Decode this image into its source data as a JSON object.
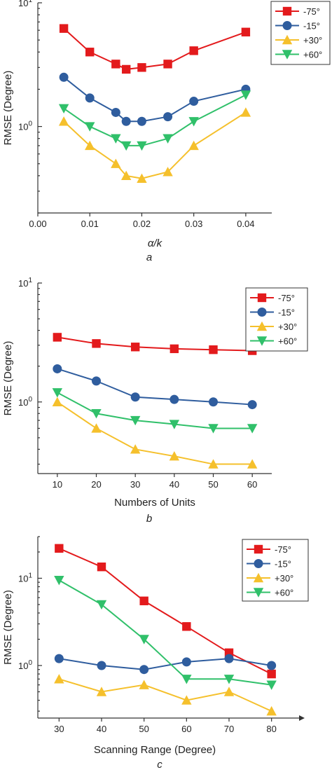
{
  "figure": {
    "colors": {
      "-75°": "#e31a1c",
      "-15°": "#2f5d9e",
      "+30°": "#f5c02c",
      "+60°": "#30c06a"
    },
    "markers": {
      "-75°": "square",
      "-15°": "circle",
      "+30°": "triangle-up",
      "+60°": "triangle-down"
    }
  },
  "chart_data": [
    {
      "type": "line",
      "panel_label": "a",
      "xlabel": "α/k",
      "xlabel_italic": true,
      "ylabel": "RMSE (Degree)",
      "yscale": "log",
      "xlim": [
        0.0,
        0.045
      ],
      "ylim": [
        0.2,
        10
      ],
      "xticks": [
        0.0,
        0.01,
        0.02,
        0.03,
        0.04
      ],
      "xtick_labels": [
        "0.00",
        "0.01",
        "0.02",
        "0.03",
        "0.04"
      ],
      "yticks": [
        1,
        10
      ],
      "ytick_labels": [
        "10⁰",
        "10¹"
      ],
      "legend_position": "top-right",
      "series": [
        {
          "name": "-75°",
          "x": [
            0.005,
            0.01,
            0.015,
            0.017,
            0.02,
            0.025,
            0.03,
            0.04
          ],
          "y": [
            6.2,
            4.0,
            3.2,
            2.9,
            3.0,
            3.2,
            4.1,
            5.8
          ]
        },
        {
          "name": "-15°",
          "x": [
            0.005,
            0.01,
            0.015,
            0.017,
            0.02,
            0.025,
            0.03,
            0.04
          ],
          "y": [
            2.5,
            1.7,
            1.3,
            1.1,
            1.1,
            1.2,
            1.6,
            2.0
          ]
        },
        {
          "name": "+30°",
          "x": [
            0.005,
            0.01,
            0.015,
            0.017,
            0.02,
            0.025,
            0.03,
            0.04
          ],
          "y": [
            1.1,
            0.7,
            0.5,
            0.4,
            0.38,
            0.43,
            0.7,
            1.3
          ]
        },
        {
          "name": "+60°",
          "x": [
            0.005,
            0.01,
            0.015,
            0.017,
            0.02,
            0.025,
            0.03,
            0.04
          ],
          "y": [
            1.4,
            1.0,
            0.8,
            0.7,
            0.7,
            0.8,
            1.1,
            1.8
          ]
        }
      ]
    },
    {
      "type": "line",
      "panel_label": "b",
      "xlabel": "Numbers of Units",
      "xlabel_italic": false,
      "ylabel": "RMSE (Degree)",
      "yscale": "log",
      "xlim": [
        5,
        65
      ],
      "ylim": [
        0.25,
        10
      ],
      "xticks": [
        10,
        20,
        30,
        40,
        50,
        60
      ],
      "xtick_labels": [
        "10",
        "20",
        "30",
        "40",
        "50",
        "60"
      ],
      "yticks": [
        1,
        10
      ],
      "ytick_labels": [
        "10⁰",
        "10¹"
      ],
      "legend_position": "top-right",
      "series": [
        {
          "name": "-75°",
          "x": [
            10,
            20,
            30,
            40,
            50,
            60
          ],
          "y": [
            3.5,
            3.1,
            2.9,
            2.8,
            2.75,
            2.7
          ]
        },
        {
          "name": "-15°",
          "x": [
            10,
            20,
            30,
            40,
            50,
            60
          ],
          "y": [
            1.9,
            1.5,
            1.1,
            1.05,
            1.0,
            0.95
          ]
        },
        {
          "name": "+30°",
          "x": [
            10,
            20,
            30,
            40,
            50,
            60
          ],
          "y": [
            1.0,
            0.6,
            0.4,
            0.35,
            0.3,
            0.3
          ]
        },
        {
          "name": "+60°",
          "x": [
            10,
            20,
            30,
            40,
            50,
            60
          ],
          "y": [
            1.2,
            0.8,
            0.7,
            0.65,
            0.6,
            0.6
          ]
        }
      ]
    },
    {
      "type": "line",
      "panel_label": "c",
      "xlabel": "Scanning Range (Degree)",
      "xlabel_italic": false,
      "ylabel": "RMSE (Degree)",
      "yscale": "log",
      "xlim": [
        25,
        85
      ],
      "ylim": [
        0.25,
        30
      ],
      "xticks": [
        30,
        40,
        50,
        60,
        70,
        80
      ],
      "xtick_labels": [
        "30",
        "40",
        "50",
        "60",
        "70",
        "80"
      ],
      "yticks": [
        1,
        10
      ],
      "ytick_labels": [
        "10⁰",
        "10¹"
      ],
      "legend_position": "top-right",
      "x_axis_arrow": true,
      "series": [
        {
          "name": "-75°",
          "x": [
            30,
            40,
            50,
            60,
            70,
            80
          ],
          "y": [
            22,
            13.5,
            5.5,
            2.8,
            1.4,
            0.8
          ]
        },
        {
          "name": "-15°",
          "x": [
            30,
            40,
            50,
            60,
            70,
            80
          ],
          "y": [
            1.2,
            1.0,
            0.9,
            1.1,
            1.2,
            1.0
          ]
        },
        {
          "name": "+30°",
          "x": [
            30,
            40,
            50,
            60,
            70,
            80
          ],
          "y": [
            0.7,
            0.5,
            0.6,
            0.4,
            0.5,
            0.3
          ]
        },
        {
          "name": "+60°",
          "x": [
            30,
            40,
            50,
            60,
            70,
            80
          ],
          "y": [
            9.5,
            5.0,
            2.0,
            0.7,
            0.7,
            0.6
          ]
        }
      ]
    }
  ]
}
